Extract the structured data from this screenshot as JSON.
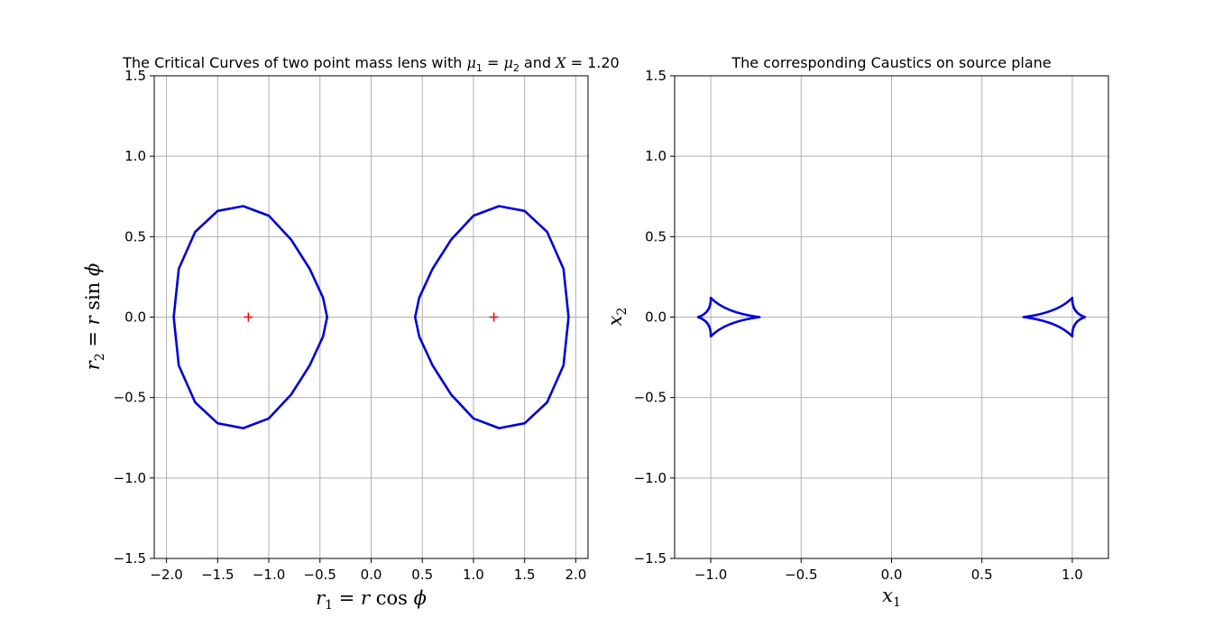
{
  "chart_data": [
    {
      "type": "line",
      "title": "The Critical Curves of two point mass lens with μ1 = μ2 and X = 1.20",
      "title_parts": {
        "prefix": "The Critical Curves of two point mass lens with ",
        "mu": "μ",
        "sub1": "1",
        "eq": " = ",
        "sub2": "2",
        "mid": " and ",
        "xvar": "X",
        "value": " = 1.20"
      },
      "xlabel": "r1 = r cos ϕ",
      "ylabel": "r2 = r sin ϕ",
      "xlim": [
        -2.12,
        2.12
      ],
      "ylim": [
        -1.5,
        1.5
      ],
      "xticks": [
        -2.0,
        -1.5,
        -1.0,
        -0.5,
        0.0,
        0.5,
        1.0,
        1.5,
        2.0
      ],
      "xtick_labels": [
        "−2.0",
        "−1.5",
        "−1.0",
        "−0.5",
        "0.0",
        "0.5",
        "1.0",
        "1.5",
        "2.0"
      ],
      "yticks": [
        -1.5,
        -1.0,
        -0.5,
        0.0,
        0.5,
        1.0,
        1.5
      ],
      "ytick_labels": [
        "−1.5",
        "−1.0",
        "−0.5",
        "0.0",
        "0.5",
        "1.0",
        "1.5"
      ],
      "grid": true,
      "series_color": "#0000dd",
      "marker_color": "#ff0000",
      "series": [
        {
          "shape": "critical-curve",
          "x": [
            -1.93,
            -1.88,
            -1.72,
            -1.5,
            -1.25,
            -1.0,
            -0.78,
            -0.6,
            -0.47,
            -0.43,
            -0.47,
            -0.6,
            -0.78,
            -1.0,
            -1.25,
            -1.5,
            -1.72,
            -1.88,
            -1.93
          ],
          "y": [
            0.0,
            0.3,
            0.53,
            0.66,
            0.69,
            0.63,
            0.48,
            0.3,
            0.12,
            0.0,
            -0.12,
            -0.3,
            -0.48,
            -0.63,
            -0.69,
            -0.66,
            -0.53,
            -0.3,
            0.0
          ]
        },
        {
          "shape": "critical-curve",
          "x": [
            1.93,
            1.88,
            1.72,
            1.5,
            1.25,
            1.0,
            0.78,
            0.6,
            0.47,
            0.43,
            0.47,
            0.6,
            0.78,
            1.0,
            1.25,
            1.5,
            1.72,
            1.88,
            1.93
          ],
          "y": [
            0.0,
            0.3,
            0.53,
            0.66,
            0.69,
            0.63,
            0.48,
            0.3,
            0.12,
            0.0,
            -0.12,
            -0.3,
            -0.48,
            -0.63,
            -0.69,
            -0.66,
            -0.53,
            -0.3,
            0.0
          ]
        }
      ],
      "lens_positions": [
        {
          "x": -1.2,
          "y": 0.0
        },
        {
          "x": 1.2,
          "y": 0.0
        }
      ]
    },
    {
      "type": "line",
      "title": "The corresponding Caustics on source plane",
      "xlabel": "x1",
      "ylabel": "x2",
      "xlim": [
        -1.2,
        1.2
      ],
      "ylim": [
        -1.5,
        1.5
      ],
      "xticks": [
        -1.0,
        -0.5,
        0.0,
        0.5,
        1.0
      ],
      "xtick_labels": [
        "−1.0",
        "−0.5",
        "0.0",
        "0.5",
        "1.0"
      ],
      "yticks": [
        -1.5,
        -1.0,
        -0.5,
        0.0,
        0.5,
        1.0,
        1.5
      ],
      "ytick_labels": [
        "−1.5",
        "−1.0",
        "−0.5",
        "0.0",
        "0.5",
        "1.0",
        "1.5"
      ],
      "grid": true,
      "series_color": "#0000dd",
      "series": [
        {
          "shape": "caustic",
          "cusps": {
            "tip_x": -0.73,
            "back_x": -1.07,
            "top_x": -1.0,
            "top_y": 0.12
          }
        },
        {
          "shape": "caustic",
          "cusps": {
            "tip_x": 0.73,
            "back_x": 1.07,
            "top_x": 1.0,
            "top_y": 0.12
          }
        }
      ]
    }
  ]
}
